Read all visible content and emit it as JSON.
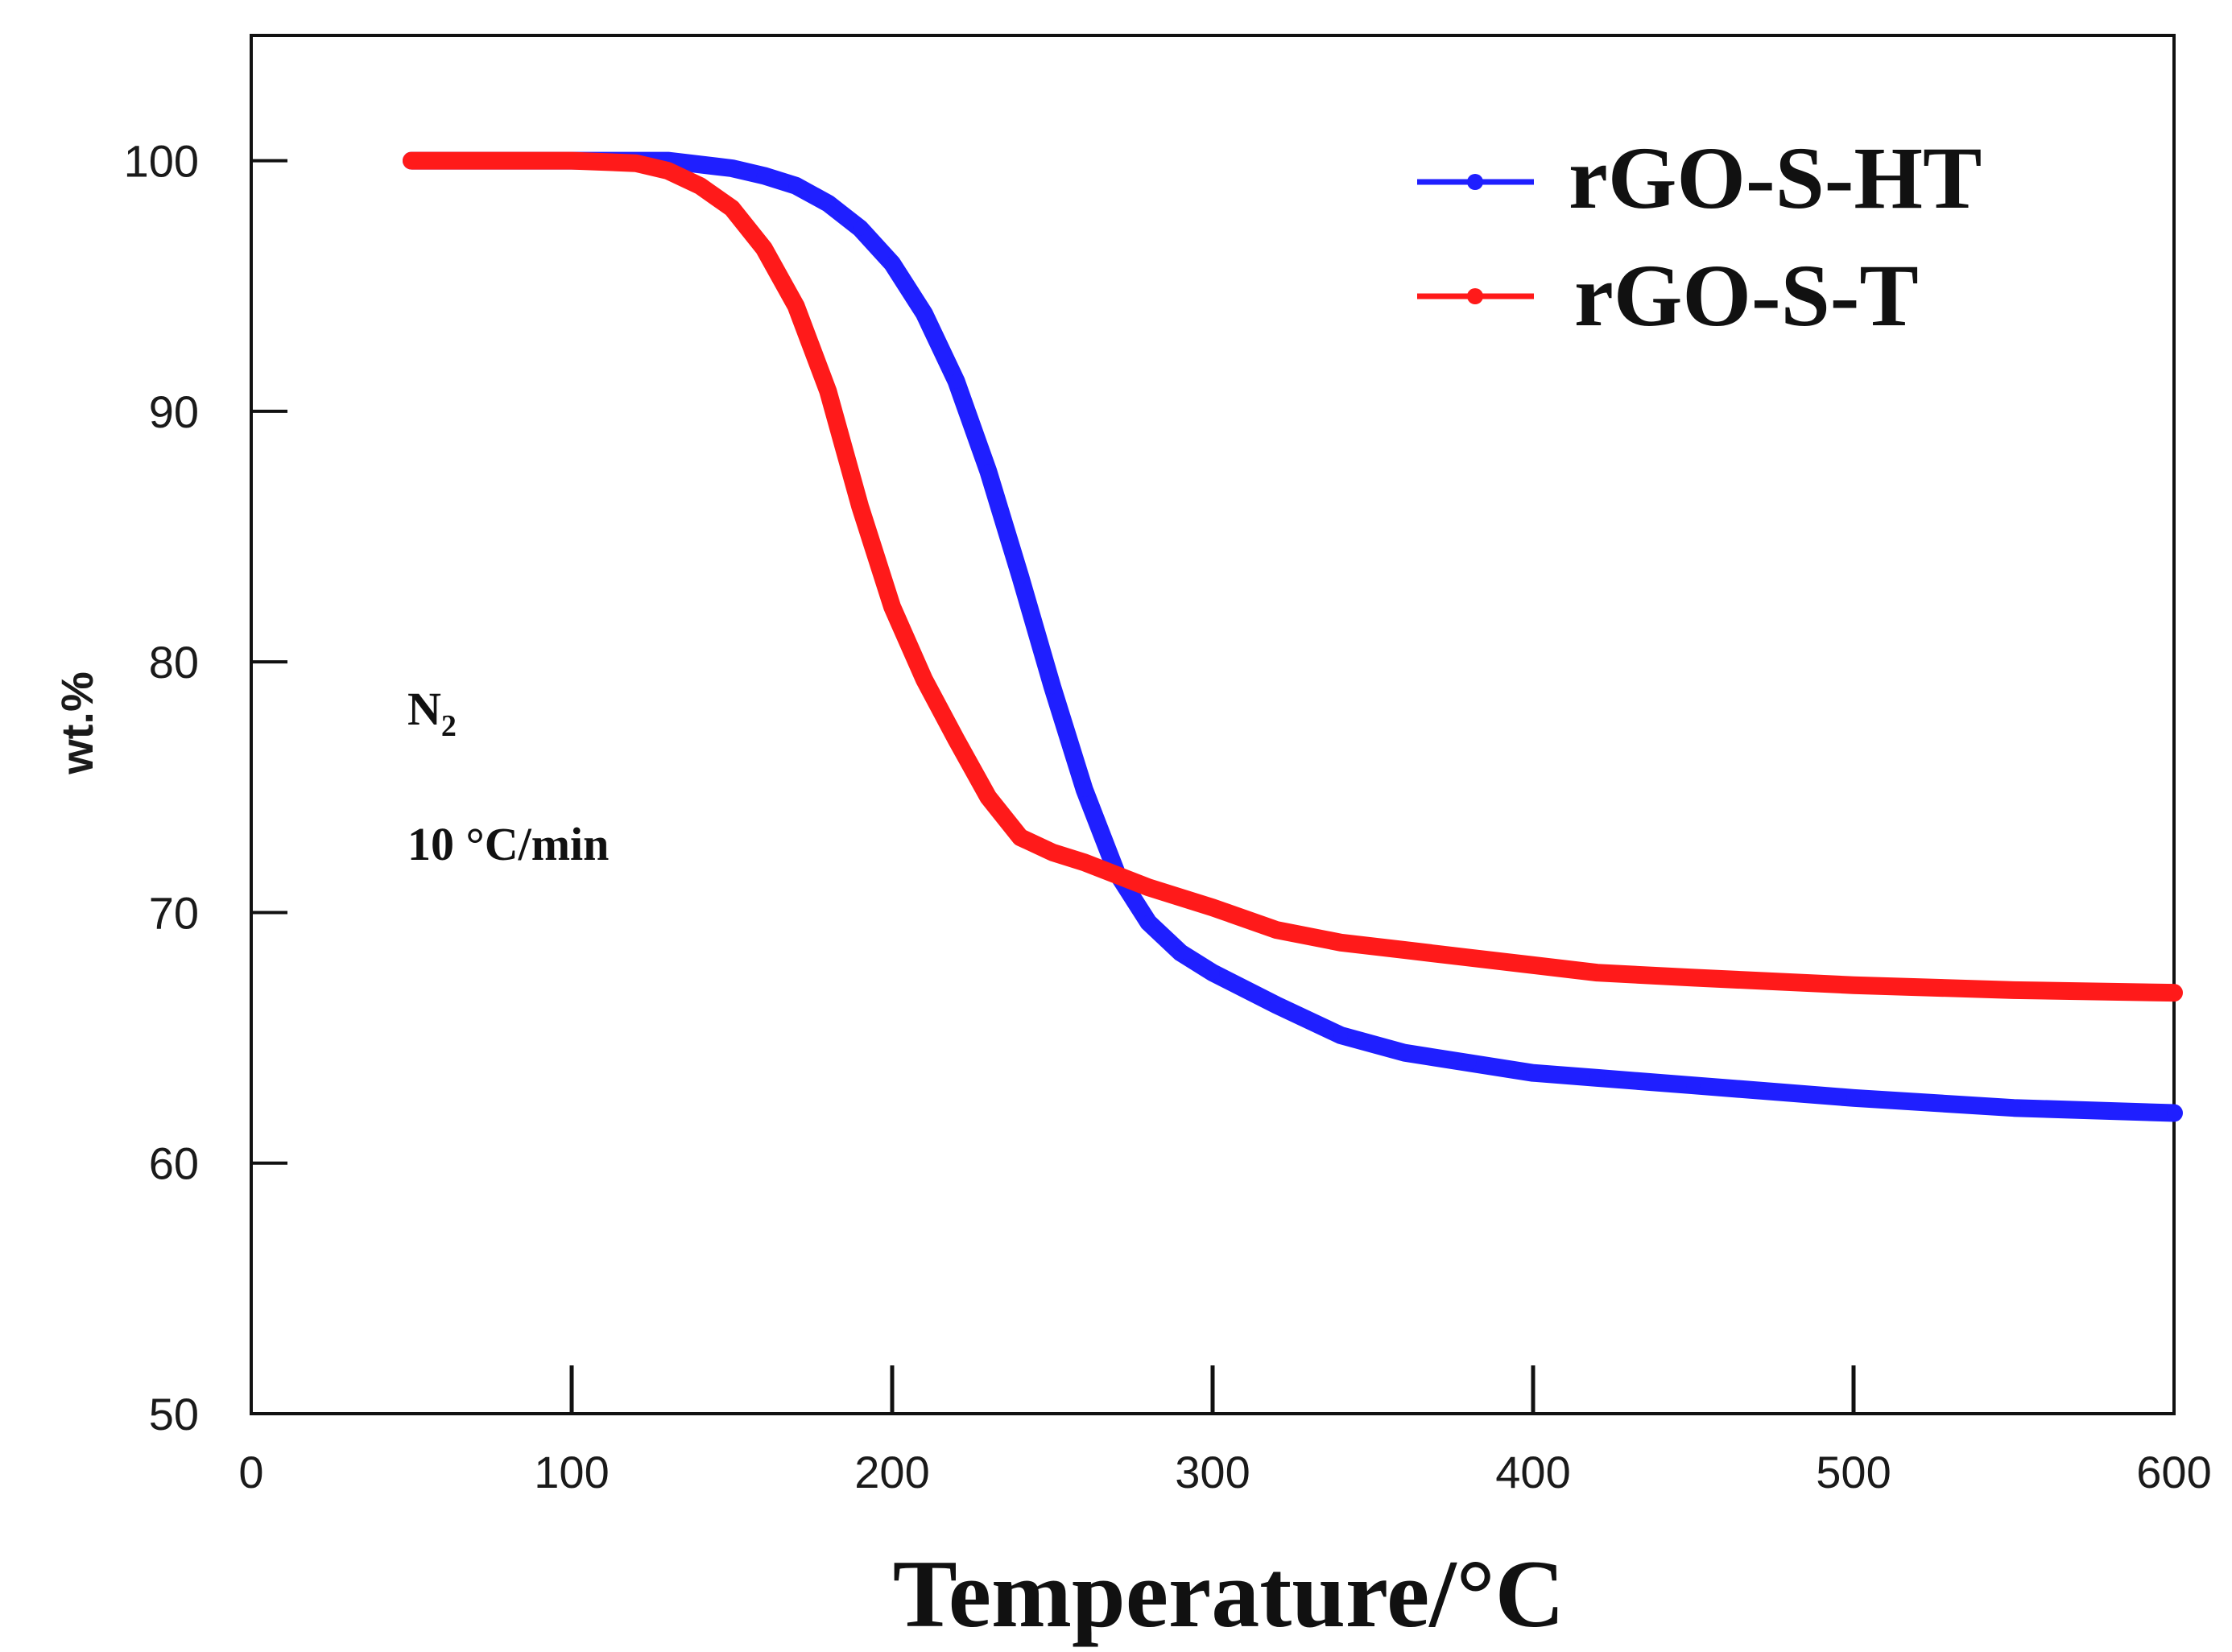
{
  "chart_data": {
    "type": "line",
    "xlabel": "Temperature/°C",
    "ylabel": "wt.%",
    "xlim": [
      0,
      600
    ],
    "ylim": [
      50,
      105
    ],
    "xticks": [
      0,
      100,
      200,
      300,
      400,
      500,
      600
    ],
    "yticks": [
      50,
      60,
      70,
      80,
      90,
      100
    ],
    "grid": false,
    "legend": {
      "position": "top-right"
    },
    "annotations": {
      "gas_main": "N",
      "gas_sub": "2",
      "rate": "10 °C/min"
    },
    "series": [
      {
        "name": "rGO-S-HT",
        "color": "#1f1fff",
        "x": [
          50,
          100,
          130,
          150,
          160,
          170,
          180,
          190,
          200,
          210,
          220,
          230,
          240,
          250,
          260,
          270,
          280,
          290,
          300,
          320,
          340,
          360,
          380,
          400,
          420,
          450,
          500,
          550,
          600
        ],
        "y": [
          100,
          100,
          100,
          99.7,
          99.4,
          99.0,
          98.3,
          97.3,
          95.9,
          93.9,
          91.2,
          87.6,
          83.4,
          79.0,
          74.9,
          71.6,
          69.6,
          68.4,
          67.6,
          66.3,
          65.1,
          64.4,
          64.0,
          63.6,
          63.4,
          63.1,
          62.6,
          62.2,
          62.0
        ]
      },
      {
        "name": "rGO-S-T",
        "color": "#ff1a1a",
        "x": [
          50,
          100,
          120,
          130,
          140,
          150,
          160,
          170,
          180,
          190,
          200,
          210,
          220,
          230,
          240,
          250,
          260,
          270,
          280,
          300,
          320,
          340,
          360,
          380,
          400,
          420,
          450,
          500,
          550,
          600
        ],
        "y": [
          100,
          100,
          99.9,
          99.6,
          99.0,
          98.1,
          96.5,
          94.2,
          90.8,
          86.2,
          82.2,
          79.3,
          76.9,
          74.6,
          73.0,
          72.4,
          72.0,
          71.5,
          71.0,
          70.2,
          69.3,
          68.8,
          68.5,
          68.2,
          67.9,
          67.6,
          67.4,
          67.1,
          66.9,
          66.8
        ]
      }
    ]
  }
}
